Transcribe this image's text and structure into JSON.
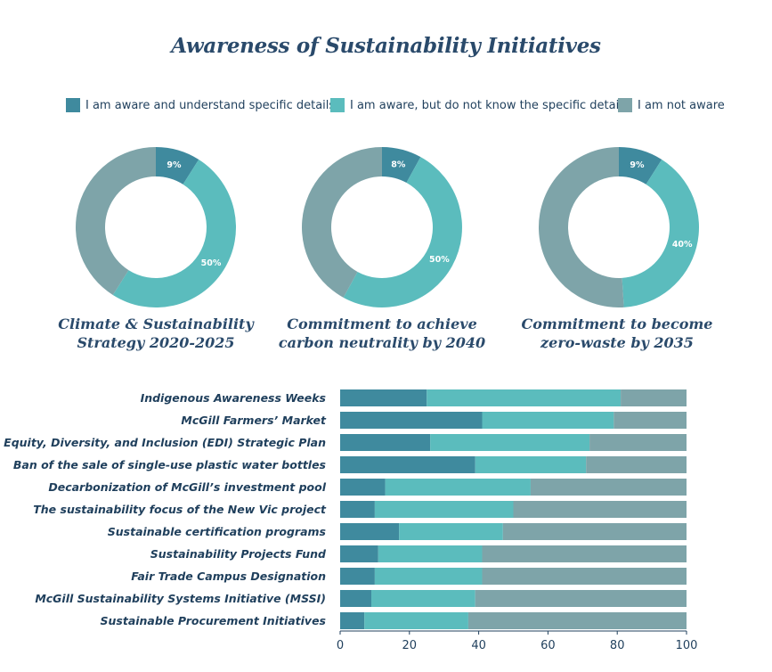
{
  "title": "Awareness of Sustainability Initiatives",
  "colors": {
    "aware_details": "#3f8a9e",
    "aware_no_details": "#5bbcbd",
    "not_aware": "#7ea4a9",
    "text": "#1f3f5c"
  },
  "legend": [
    {
      "label": "I am aware and understand specific details",
      "color": "#3f8a9e"
    },
    {
      "label": "I am aware, but do not know the specific details",
      "color": "#5bbcbd"
    },
    {
      "label": "I am not aware",
      "color": "#7ea4a9"
    }
  ],
  "chart_data": [
    {
      "type": "pie",
      "style": "donut",
      "caption_lines": [
        "Climate & Sustainability",
        "Strategy 2020-2025"
      ],
      "slices": [
        {
          "category": "I am aware and understand specific details",
          "value": 9,
          "label": "9%"
        },
        {
          "category": "I am aware, but do not know the specific details",
          "value": 50,
          "label": "50%"
        },
        {
          "category": "I am not aware",
          "value": 41,
          "label": ""
        }
      ]
    },
    {
      "type": "pie",
      "style": "donut",
      "caption_lines": [
        "Commitment to achieve",
        "carbon neutrality by 2040"
      ],
      "slices": [
        {
          "category": "I am aware and understand specific details",
          "value": 8,
          "label": "8%"
        },
        {
          "category": "I am aware, but do not know the specific details",
          "value": 50,
          "label": "50%"
        },
        {
          "category": "I am not aware",
          "value": 42,
          "label": ""
        }
      ]
    },
    {
      "type": "pie",
      "style": "donut",
      "caption_lines": [
        "Commitment to become",
        "zero-waste by 2035"
      ],
      "slices": [
        {
          "category": "I am aware and understand specific details",
          "value": 9,
          "label": "9%"
        },
        {
          "category": "I am aware, but do not know the specific details",
          "value": 40,
          "label": "40%"
        },
        {
          "category": "I am not aware",
          "value": 51,
          "label": ""
        }
      ]
    },
    {
      "type": "bar",
      "orientation": "horizontal",
      "stacked": true,
      "categories": [
        "Indigenous Awareness Weeks",
        "McGill Farmers’ Market",
        "Equity, Diversity, and Inclusion (EDI) Strategic Plan",
        "Ban of the sale of single-use plastic water bottles",
        "Decarbonization of McGill’s investment pool",
        "The sustainability focus of the New Vic project",
        "Sustainable certification programs",
        "Sustainability Projects Fund",
        "Fair Trade Campus Designation",
        "McGill Sustainability Systems Initiative (MSSI)",
        "Sustainable Procurement Initiatives"
      ],
      "series": [
        {
          "name": "I am aware and understand specific details",
          "values": [
            25,
            41,
            26,
            39,
            13,
            10,
            17,
            11,
            10,
            9,
            7
          ]
        },
        {
          "name": "I am aware, but do not know the specific details",
          "values": [
            56,
            38,
            46,
            32,
            42,
            40,
            30,
            30,
            31,
            30,
            30
          ]
        },
        {
          "name": "I am not aware",
          "values": [
            19,
            21,
            28,
            29,
            45,
            50,
            53,
            59,
            59,
            61,
            63
          ]
        }
      ],
      "xlim": [
        0,
        100
      ],
      "xticks": [
        0,
        20,
        40,
        60,
        80,
        100
      ],
      "grid": false
    }
  ]
}
